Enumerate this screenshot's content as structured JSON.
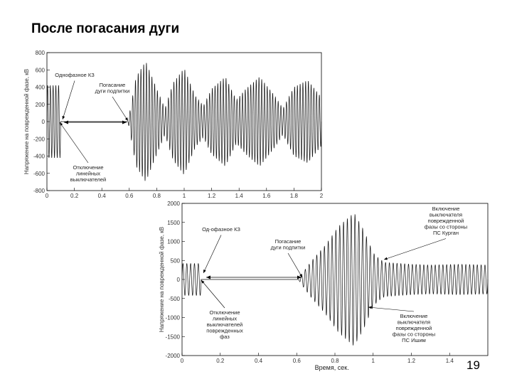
{
  "slide": {
    "title": "После погасания дуги",
    "page_number": "19"
  },
  "chart_data": [
    {
      "type": "line",
      "xlim": [
        0,
        2
      ],
      "ylim": [
        -800,
        800
      ],
      "xticks": [
        "0",
        "0.2",
        "0.4",
        "0.6",
        "0.8",
        "1",
        "1.2",
        "1.4",
        "1.6",
        "1.8",
        "2"
      ],
      "yticks": [
        "800",
        "600",
        "400",
        "200",
        "0",
        "-200",
        "-400",
        "-600",
        "-800"
      ],
      "ylabel": "Напряжение на поврежденной фазе, кВ",
      "xlabel": "",
      "annotations": [
        {
          "text": [
            "Однофазное КЗ"
          ],
          "x": 0.1,
          "y": 30
        },
        {
          "text": [
            "Погасание",
            "дуги подпитки"
          ],
          "x": 0.59,
          "y": 20
        },
        {
          "text": [
            "Отключение",
            "линейных",
            "выключателей"
          ],
          "x": 0.1,
          "y": -20
        }
      ],
      "envelope": [
        [
          0,
          420
        ],
        [
          0.1,
          420
        ],
        [
          0.1001,
          0
        ],
        [
          0.59,
          0
        ],
        [
          0.6,
          80
        ],
        [
          0.65,
          520
        ],
        [
          0.72,
          700
        ],
        [
          0.8,
          380
        ],
        [
          0.86,
          150
        ],
        [
          0.92,
          450
        ],
        [
          1.0,
          620
        ],
        [
          1.08,
          300
        ],
        [
          1.14,
          180
        ],
        [
          1.2,
          380
        ],
        [
          1.3,
          520
        ],
        [
          1.38,
          250
        ],
        [
          1.45,
          380
        ],
        [
          1.55,
          520
        ],
        [
          1.65,
          320
        ],
        [
          1.72,
          150
        ],
        [
          1.8,
          400
        ],
        [
          1.9,
          480
        ],
        [
          2.0,
          280
        ]
      ]
    },
    {
      "type": "line",
      "xlim": [
        0,
        1.6
      ],
      "ylim": [
        -2000,
        2000
      ],
      "xticks": [
        "0",
        "0.2",
        "0.4",
        "0.6",
        "0.8",
        "1",
        "1.2",
        "1.4"
      ],
      "yticks": [
        "2000",
        "1500",
        "1000",
        "500",
        "0",
        "-500",
        "-1000",
        "-1500",
        "-2000"
      ],
      "ylabel": "Напряжение на поврежденной фазе, кВ",
      "xlabel": "Время, сек.",
      "annotations": [
        {
          "text": [
            "Од-офазное КЗ"
          ],
          "x": 0.1,
          "y": 400
        },
        {
          "text": [
            "Погасание",
            "дуги подпитки"
          ],
          "x": 0.61,
          "y": 50
        },
        {
          "text": [
            "Отключение",
            "линейных",
            "выключателей",
            "поврежденных",
            "фаз"
          ],
          "x": 0.1,
          "y": -50
        },
        {
          "text": [
            "Включение",
            "выключателя",
            "поврежденной",
            "фазы со стороны",
            "ПС Курган"
          ],
          "x": 1.03,
          "y": 150
        },
        {
          "text": [
            "Включение",
            "выключателя",
            "поврежденной",
            "фазы со стороны",
            "ПС Ишим"
          ],
          "x": 0.93,
          "y": -1000
        }
      ],
      "envelope": [
        [
          0,
          420
        ],
        [
          0.1,
          420
        ],
        [
          0.1001,
          0
        ],
        [
          0.61,
          0
        ],
        [
          0.62,
          100
        ],
        [
          0.68,
          500
        ],
        [
          0.75,
          900
        ],
        [
          0.82,
          1400
        ],
        [
          0.9,
          1750
        ],
        [
          0.95,
          1300
        ],
        [
          1.0,
          700
        ],
        [
          1.03,
          550
        ],
        [
          1.06,
          450
        ],
        [
          1.2,
          400
        ],
        [
          1.3,
          380
        ],
        [
          1.45,
          400
        ],
        [
          1.6,
          380
        ]
      ]
    }
  ]
}
